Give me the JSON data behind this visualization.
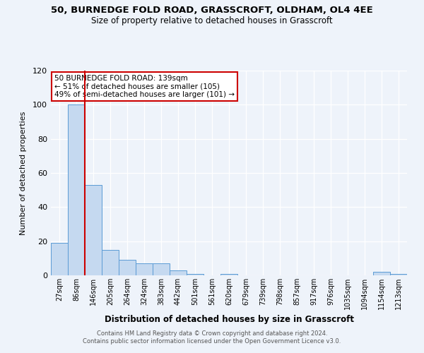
{
  "title1": "50, BURNEDGE FOLD ROAD, GRASSCROFT, OLDHAM, OL4 4EE",
  "title2": "Size of property relative to detached houses in Grasscroft",
  "xlabel": "Distribution of detached houses by size in Grasscroft",
  "ylabel": "Number of detached properties",
  "bar_labels": [
    "27sqm",
    "86sqm",
    "146sqm",
    "205sqm",
    "264sqm",
    "324sqm",
    "383sqm",
    "442sqm",
    "501sqm",
    "561sqm",
    "620sqm",
    "679sqm",
    "739sqm",
    "798sqm",
    "857sqm",
    "917sqm",
    "976sqm",
    "1035sqm",
    "1094sqm",
    "1154sqm",
    "1213sqm"
  ],
  "bar_heights": [
    19,
    100,
    53,
    15,
    9,
    7,
    7,
    3,
    1,
    0,
    1,
    0,
    0,
    0,
    0,
    0,
    0,
    0,
    0,
    2,
    1
  ],
  "bar_color": "#c5d9f0",
  "bar_edge_color": "#5b9bd5",
  "subject_line_color": "#cc0000",
  "ylim": [
    0,
    120
  ],
  "yticks": [
    0,
    20,
    40,
    60,
    80,
    100,
    120
  ],
  "annotation_title": "50 BURNEDGE FOLD ROAD: 139sqm",
  "annotation_line1": "← 51% of detached houses are smaller (105)",
  "annotation_line2": "49% of semi-detached houses are larger (101) →",
  "annotation_box_color": "#ffffff",
  "annotation_box_edge": "#cc0000",
  "footer1": "Contains HM Land Registry data © Crown copyright and database right 2024.",
  "footer2": "Contains public sector information licensed under the Open Government Licence v3.0.",
  "background_color": "#eef3fa"
}
